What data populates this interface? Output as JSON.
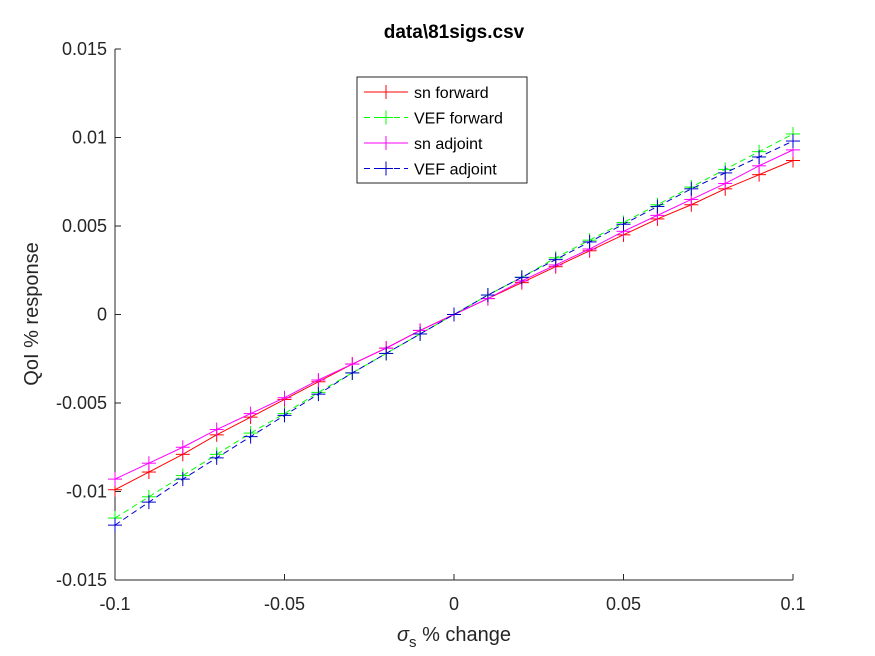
{
  "chart_data": {
    "type": "line",
    "title": "data\\81sigs.csv",
    "xlabel_symbol": "σ",
    "xlabel_subscript": "s",
    "xlabel_rest": " % change",
    "ylabel": "QoI % response",
    "xlim": [
      -0.1,
      0.1
    ],
    "ylim": [
      -0.015,
      0.015
    ],
    "xticks": [
      -0.1,
      -0.05,
      0,
      0.05,
      0.1
    ],
    "xtick_labels": [
      "-0.1",
      "-0.05",
      "0",
      "0.05",
      "0.1"
    ],
    "yticks": [
      -0.015,
      -0.01,
      -0.005,
      0,
      0.005,
      0.01,
      0.015
    ],
    "ytick_labels": [
      "-0.015",
      "-0.01",
      "-0.005",
      "0",
      "0.005",
      "0.01",
      "0.015"
    ],
    "grid": false,
    "legend_position": "top-center",
    "x": [
      -0.1,
      -0.09,
      -0.08,
      -0.07,
      -0.06,
      -0.05,
      -0.04,
      -0.03,
      -0.02,
      -0.01,
      0,
      0.01,
      0.02,
      0.03,
      0.04,
      0.05,
      0.06,
      0.07,
      0.08,
      0.09,
      0.1
    ],
    "series": [
      {
        "name": "sn forward",
        "color": "#ff0000",
        "dash": "solid",
        "values": [
          -0.0099,
          -0.0089,
          -0.0079,
          -0.0068,
          -0.0058,
          -0.0048,
          -0.0038,
          -0.0028,
          -0.0019,
          -0.0009,
          0,
          0.0009,
          0.0018,
          0.0027,
          0.0036,
          0.0045,
          0.0054,
          0.0062,
          0.0071,
          0.0079,
          0.0087
        ]
      },
      {
        "name": "VEF forward",
        "color": "#00ff00",
        "dash": "dashed",
        "values": [
          -0.0115,
          -0.0103,
          -0.0091,
          -0.0079,
          -0.0067,
          -0.0056,
          -0.0044,
          -0.0033,
          -0.0022,
          -0.0011,
          0,
          0.0011,
          0.0021,
          0.0032,
          0.0042,
          0.0052,
          0.0062,
          0.0072,
          0.0082,
          0.0092,
          0.0102
        ]
      },
      {
        "name": "sn adjoint",
        "color": "#ff00ff",
        "dash": "solid",
        "values": [
          -0.0093,
          -0.0084,
          -0.0075,
          -0.0065,
          -0.0056,
          -0.0047,
          -0.0037,
          -0.0028,
          -0.0019,
          -0.0009,
          0,
          0.0009,
          0.0019,
          0.0028,
          0.0037,
          0.0047,
          0.0056,
          0.0065,
          0.0074,
          0.0084,
          0.0093
        ]
      },
      {
        "name": "VEF adjoint",
        "color": "#0000cc",
        "dash": "dashed",
        "values": [
          -0.0119,
          -0.0106,
          -0.0093,
          -0.0081,
          -0.0069,
          -0.0057,
          -0.0045,
          -0.0033,
          -0.0022,
          -0.0011,
          0,
          0.0011,
          0.0021,
          0.0031,
          0.0041,
          0.0051,
          0.0061,
          0.0071,
          0.008,
          0.0089,
          0.0098
        ]
      }
    ]
  }
}
